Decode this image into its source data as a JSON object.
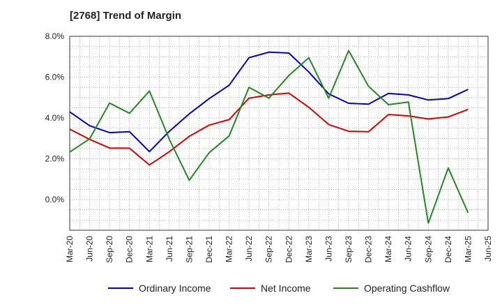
{
  "chart_data": {
    "type": "line",
    "title": "[2768]  Trend of Margin",
    "xlabel": "",
    "ylabel": "",
    "x": [
      "Mar-20",
      "Jun-20",
      "Sep-20",
      "Dec-20",
      "Mar-21",
      "Jun-21",
      "Sep-21",
      "Dec-21",
      "Mar-22",
      "Jun-22",
      "Sep-22",
      "Dec-22",
      "Mar-23",
      "Jun-23",
      "Sep-23",
      "Dec-23",
      "Mar-24",
      "Jun-24",
      "Sep-24",
      "Dec-24",
      "Mar-25",
      "Jun-25"
    ],
    "ylim": [
      -1.5,
      8.0
    ],
    "yticks": [
      0.0,
      2.0,
      4.0,
      6.0,
      8.0
    ],
    "ytick_labels": [
      "0.0%",
      "2.0%",
      "4.0%",
      "6.0%",
      "8.0%"
    ],
    "grid": true,
    "legend_position": "bottom",
    "series": [
      {
        "name": "Ordinary Income",
        "color": "#0000cc",
        "values": [
          4.3,
          3.62,
          3.28,
          3.33,
          2.35,
          3.35,
          4.2,
          4.95,
          5.6,
          6.95,
          7.22,
          7.18,
          6.25,
          5.18,
          4.72,
          4.68,
          5.2,
          5.13,
          4.88,
          4.95,
          5.4,
          null
        ]
      },
      {
        "name": "Net Income",
        "color": "#dd0000",
        "values": [
          3.45,
          2.95,
          2.53,
          2.52,
          1.7,
          2.35,
          3.1,
          3.65,
          3.92,
          4.97,
          5.13,
          5.22,
          4.52,
          3.68,
          3.35,
          3.33,
          4.17,
          4.1,
          3.95,
          4.05,
          4.42,
          null
        ]
      },
      {
        "name": "Operating Cashflow",
        "color": "#228822",
        "values": [
          2.33,
          2.98,
          4.73,
          4.23,
          5.32,
          2.95,
          0.95,
          2.3,
          3.12,
          5.5,
          4.97,
          6.08,
          6.95,
          4.97,
          7.3,
          5.55,
          4.65,
          4.78,
          -1.15,
          1.55,
          -0.65,
          null
        ]
      }
    ]
  }
}
